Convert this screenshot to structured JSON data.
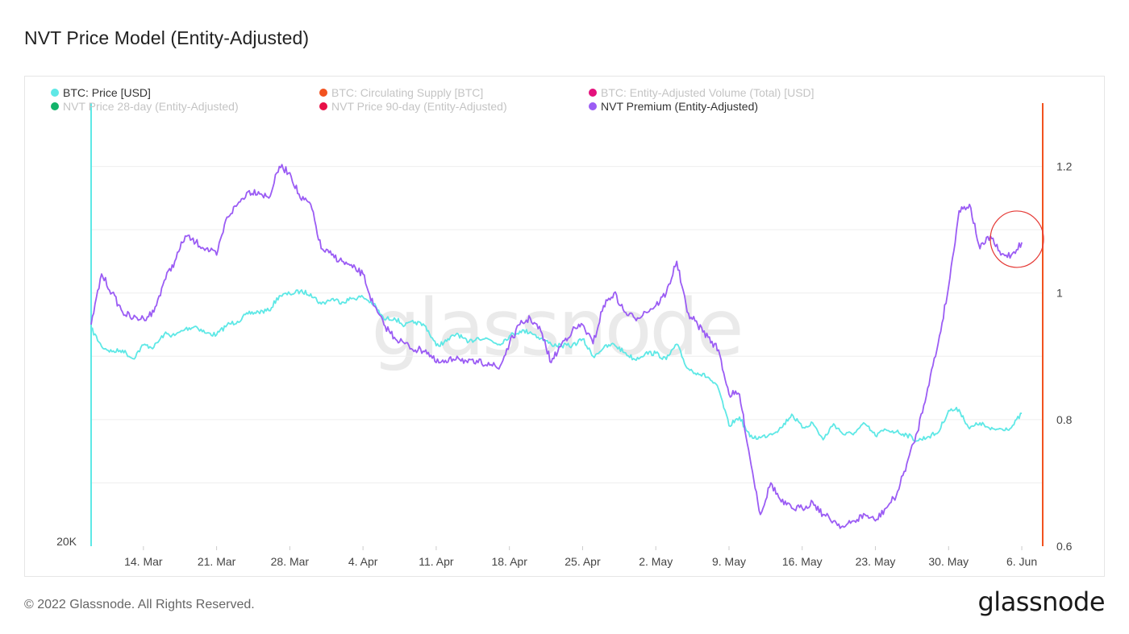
{
  "header": {
    "title": "NVT Price Model (Entity-Adjusted)"
  },
  "footer": {
    "copyright": "© 2022 Glassnode. All Rights Reserved.",
    "logo": "glassnode"
  },
  "watermark": "glassnode",
  "colors": {
    "price": "#5ee8e6",
    "supply": "#f2521f",
    "volume": "#e4117c",
    "nvt28": "#13b36a",
    "nvt90": "#e81047",
    "premium": "#9b5cf4",
    "annotation": "#e53935"
  },
  "legend": [
    {
      "label": "BTC: Price [USD]",
      "color": "#5ee8e6",
      "active": true
    },
    {
      "label": "BTC: Circulating Supply [BTC]",
      "color": "#f2521f",
      "active": false
    },
    {
      "label": "BTC: Entity-Adjusted Volume (Total) [USD]",
      "color": "#e4117c",
      "active": false
    },
    {
      "label": "NVT Price 28-day (Entity-Adjusted)",
      "color": "#13b36a",
      "active": false
    },
    {
      "label": "NVT Price 90-day (Entity-Adjusted)",
      "color": "#e81047",
      "active": false
    },
    {
      "label": "NVT Premium (Entity-Adjusted)",
      "color": "#9b5cf4",
      "active": true
    }
  ],
  "chart_data": {
    "type": "line",
    "x_range": [
      "2022-03-09",
      "2022-06-08"
    ],
    "x_ticks": [
      {
        "date": "2022-03-14",
        "label": "14. Mar"
      },
      {
        "date": "2022-03-21",
        "label": "21. Mar"
      },
      {
        "date": "2022-03-28",
        "label": "28. Mar"
      },
      {
        "date": "2022-04-04",
        "label": "4. Apr"
      },
      {
        "date": "2022-04-11",
        "label": "11. Apr"
      },
      {
        "date": "2022-04-18",
        "label": "18. Apr"
      },
      {
        "date": "2022-04-25",
        "label": "25. Apr"
      },
      {
        "date": "2022-05-02",
        "label": "2. May"
      },
      {
        "date": "2022-05-09",
        "label": "9. May"
      },
      {
        "date": "2022-05-16",
        "label": "16. May"
      },
      {
        "date": "2022-05-23",
        "label": "23. May"
      },
      {
        "date": "2022-05-30",
        "label": "30. May"
      },
      {
        "date": "2022-06-06",
        "label": "6. Jun"
      }
    ],
    "y_left": {
      "ticks": [
        {
          "value": 20000,
          "label": "20K"
        }
      ],
      "scale": "log"
    },
    "y_right": {
      "ylim": [
        0.6,
        1.3
      ],
      "ticks": [
        {
          "value": 1.2,
          "label": "1.2"
        },
        {
          "value": 1.0,
          "label": "1"
        },
        {
          "value": 0.8,
          "label": "0.8"
        },
        {
          "value": 0.6,
          "label": "0.6"
        }
      ]
    },
    "grid": true,
    "legend_position": "top-left",
    "annotation": {
      "type": "circle",
      "date": "2022-06-06",
      "value": 1.085
    },
    "series": [
      {
        "name": "BTC: Price [USD]",
        "axis": "left",
        "points": [
          [
            "2022-03-09",
            41900
          ],
          [
            "2022-03-10",
            39400
          ],
          [
            "2022-03-11",
            38700
          ],
          [
            "2022-03-12",
            38900
          ],
          [
            "2022-03-13",
            37800
          ],
          [
            "2022-03-14",
            39600
          ],
          [
            "2022-03-15",
            39300
          ],
          [
            "2022-03-16",
            41100
          ],
          [
            "2022-03-17",
            40900
          ],
          [
            "2022-03-18",
            41800
          ],
          [
            "2022-03-19",
            42200
          ],
          [
            "2022-03-20",
            41200
          ],
          [
            "2022-03-21",
            41000
          ],
          [
            "2022-03-22",
            42400
          ],
          [
            "2022-03-23",
            42900
          ],
          [
            "2022-03-24",
            44000
          ],
          [
            "2022-03-25",
            44300
          ],
          [
            "2022-03-26",
            44500
          ],
          [
            "2022-03-27",
            46800
          ],
          [
            "2022-03-28",
            47100
          ],
          [
            "2022-03-29",
            47500
          ],
          [
            "2022-03-30",
            47100
          ],
          [
            "2022-03-31",
            45500
          ],
          [
            "2022-04-01",
            46300
          ],
          [
            "2022-04-02",
            45800
          ],
          [
            "2022-04-03",
            46400
          ],
          [
            "2022-04-04",
            46600
          ],
          [
            "2022-04-05",
            45500
          ],
          [
            "2022-04-06",
            43200
          ],
          [
            "2022-04-07",
            43400
          ],
          [
            "2022-04-08",
            42300
          ],
          [
            "2022-04-09",
            42800
          ],
          [
            "2022-04-10",
            42200
          ],
          [
            "2022-04-11",
            39500
          ],
          [
            "2022-04-12",
            40100
          ],
          [
            "2022-04-13",
            41200
          ],
          [
            "2022-04-14",
            39900
          ],
          [
            "2022-04-15",
            40600
          ],
          [
            "2022-04-16",
            40400
          ],
          [
            "2022-04-17",
            39700
          ],
          [
            "2022-04-18",
            40800
          ],
          [
            "2022-04-19",
            41500
          ],
          [
            "2022-04-20",
            41400
          ],
          [
            "2022-04-21",
            40500
          ],
          [
            "2022-04-22",
            39700
          ],
          [
            "2022-04-23",
            39500
          ],
          [
            "2022-04-24",
            39500
          ],
          [
            "2022-04-25",
            40400
          ],
          [
            "2022-04-26",
            38100
          ],
          [
            "2022-04-27",
            39200
          ],
          [
            "2022-04-28",
            39700
          ],
          [
            "2022-04-29",
            38600
          ],
          [
            "2022-04-30",
            37700
          ],
          [
            "2022-05-01",
            38500
          ],
          [
            "2022-05-02",
            38500
          ],
          [
            "2022-05-03",
            37700
          ],
          [
            "2022-05-04",
            39700
          ],
          [
            "2022-05-05",
            36600
          ],
          [
            "2022-05-06",
            36000
          ],
          [
            "2022-05-07",
            35500
          ],
          [
            "2022-05-08",
            34100
          ],
          [
            "2022-05-09",
            30100
          ],
          [
            "2022-05-10",
            31000
          ],
          [
            "2022-05-11",
            29000
          ],
          [
            "2022-05-12",
            28900
          ],
          [
            "2022-05-13",
            29300
          ],
          [
            "2022-05-14",
            29900
          ],
          [
            "2022-05-15",
            31300
          ],
          [
            "2022-05-16",
            29900
          ],
          [
            "2022-05-17",
            30400
          ],
          [
            "2022-05-18",
            28700
          ],
          [
            "2022-05-19",
            30300
          ],
          [
            "2022-05-20",
            29200
          ],
          [
            "2022-05-21",
            29400
          ],
          [
            "2022-05-22",
            30300
          ],
          [
            "2022-05-23",
            29100
          ],
          [
            "2022-05-24",
            29700
          ],
          [
            "2022-05-25",
            29500
          ],
          [
            "2022-05-26",
            29200
          ],
          [
            "2022-05-27",
            28600
          ],
          [
            "2022-05-28",
            29000
          ],
          [
            "2022-05-29",
            29400
          ],
          [
            "2022-05-30",
            31700
          ],
          [
            "2022-05-31",
            31800
          ],
          [
            "2022-06-01",
            29800
          ],
          [
            "2022-06-02",
            30400
          ],
          [
            "2022-06-03",
            29700
          ],
          [
            "2022-06-04",
            29800
          ],
          [
            "2022-06-05",
            29900
          ],
          [
            "2022-06-06",
            31400
          ]
        ]
      },
      {
        "name": "NVT Premium (Entity-Adjusted)",
        "axis": "right",
        "points": [
          [
            "2022-03-09",
            0.95
          ],
          [
            "2022-03-10",
            1.03
          ],
          [
            "2022-03-11",
            1.0
          ],
          [
            "2022-03-12",
            0.97
          ],
          [
            "2022-03-13",
            0.96
          ],
          [
            "2022-03-14",
            0.96
          ],
          [
            "2022-03-15",
            0.97
          ],
          [
            "2022-03-16",
            1.02
          ],
          [
            "2022-03-17",
            1.05
          ],
          [
            "2022-03-18",
            1.09
          ],
          [
            "2022-03-19",
            1.08
          ],
          [
            "2022-03-20",
            1.07
          ],
          [
            "2022-03-21",
            1.06
          ],
          [
            "2022-03-22",
            1.12
          ],
          [
            "2022-03-23",
            1.14
          ],
          [
            "2022-03-24",
            1.16
          ],
          [
            "2022-03-25",
            1.16
          ],
          [
            "2022-03-26",
            1.15
          ],
          [
            "2022-03-27",
            1.2
          ],
          [
            "2022-03-28",
            1.19
          ],
          [
            "2022-03-29",
            1.15
          ],
          [
            "2022-03-30",
            1.14
          ],
          [
            "2022-03-31",
            1.07
          ],
          [
            "2022-04-01",
            1.06
          ],
          [
            "2022-04-02",
            1.05
          ],
          [
            "2022-04-03",
            1.04
          ],
          [
            "2022-04-04",
            1.03
          ],
          [
            "2022-04-05",
            0.98
          ],
          [
            "2022-04-06",
            0.95
          ],
          [
            "2022-04-07",
            0.93
          ],
          [
            "2022-04-08",
            0.92
          ],
          [
            "2022-04-09",
            0.91
          ],
          [
            "2022-04-10",
            0.91
          ],
          [
            "2022-04-11",
            0.89
          ],
          [
            "2022-04-12",
            0.89
          ],
          [
            "2022-04-13",
            0.9
          ],
          [
            "2022-04-14",
            0.89
          ],
          [
            "2022-04-15",
            0.89
          ],
          [
            "2022-04-16",
            0.89
          ],
          [
            "2022-04-17",
            0.88
          ],
          [
            "2022-04-18",
            0.92
          ],
          [
            "2022-04-19",
            0.95
          ],
          [
            "2022-04-20",
            0.96
          ],
          [
            "2022-04-21",
            0.94
          ],
          [
            "2022-04-22",
            0.89
          ],
          [
            "2022-04-23",
            0.92
          ],
          [
            "2022-04-24",
            0.94
          ],
          [
            "2022-04-25",
            0.95
          ],
          [
            "2022-04-26",
            0.92
          ],
          [
            "2022-04-27",
            0.98
          ],
          [
            "2022-04-28",
            1.0
          ],
          [
            "2022-04-29",
            0.97
          ],
          [
            "2022-04-30",
            0.96
          ],
          [
            "2022-05-01",
            0.97
          ],
          [
            "2022-05-02",
            0.98
          ],
          [
            "2022-05-03",
            1.0
          ],
          [
            "2022-05-04",
            1.05
          ],
          [
            "2022-05-05",
            0.97
          ],
          [
            "2022-05-06",
            0.95
          ],
          [
            "2022-05-07",
            0.93
          ],
          [
            "2022-05-08",
            0.91
          ],
          [
            "2022-05-09",
            0.84
          ],
          [
            "2022-05-10",
            0.84
          ],
          [
            "2022-05-11",
            0.74
          ],
          [
            "2022-05-12",
            0.65
          ],
          [
            "2022-05-13",
            0.7
          ],
          [
            "2022-05-14",
            0.67
          ],
          [
            "2022-05-15",
            0.66
          ],
          [
            "2022-05-16",
            0.66
          ],
          [
            "2022-05-17",
            0.67
          ],
          [
            "2022-05-18",
            0.65
          ],
          [
            "2022-05-19",
            0.64
          ],
          [
            "2022-05-20",
            0.63
          ],
          [
            "2022-05-21",
            0.64
          ],
          [
            "2022-05-22",
            0.65
          ],
          [
            "2022-05-23",
            0.64
          ],
          [
            "2022-05-24",
            0.66
          ],
          [
            "2022-05-25",
            0.68
          ],
          [
            "2022-05-26",
            0.73
          ],
          [
            "2022-05-27",
            0.78
          ],
          [
            "2022-05-28",
            0.85
          ],
          [
            "2022-05-29",
            0.92
          ],
          [
            "2022-05-30",
            1.01
          ],
          [
            "2022-05-31",
            1.13
          ],
          [
            "2022-06-01",
            1.14
          ],
          [
            "2022-06-02",
            1.07
          ],
          [
            "2022-06-03",
            1.09
          ],
          [
            "2022-06-04",
            1.06
          ],
          [
            "2022-06-05",
            1.06
          ],
          [
            "2022-06-06",
            1.08
          ]
        ]
      }
    ]
  }
}
